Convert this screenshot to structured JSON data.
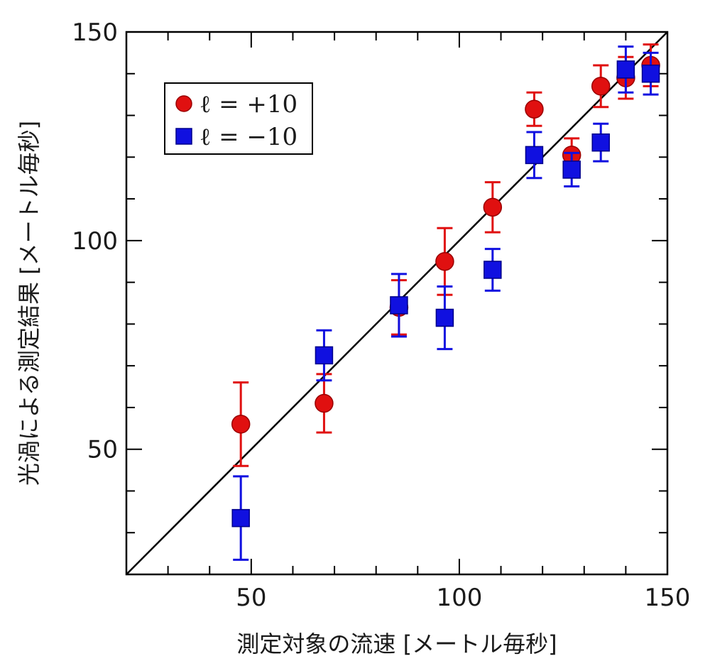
{
  "chart_data": {
    "type": "scatter",
    "xlabel": "測定対象の流速 [メートル毎秒]",
    "ylabel": "光渦による測定結果 [メートル毎秒]",
    "xlim": [
      20,
      150
    ],
    "ylim": [
      20,
      150
    ],
    "x_ticks": [
      {
        "value": 50,
        "label": "50"
      },
      {
        "value": 100,
        "label": "100"
      },
      {
        "value": 150,
        "label": "150"
      }
    ],
    "y_ticks": [
      {
        "value": 50,
        "label": "50"
      },
      {
        "value": 100,
        "label": "100"
      },
      {
        "value": 150,
        "label": "150"
      }
    ],
    "minor_tick_step": 10,
    "grid": false,
    "reference_line": {
      "from": [
        20,
        20
      ],
      "to": [
        150,
        150
      ],
      "color": "#000000"
    },
    "legend": {
      "position": "top-left"
    },
    "series": [
      {
        "name": "ℓ = +10",
        "marker": "circle",
        "color": "#e01010",
        "points": [
          {
            "x": 47.5,
            "y": 56,
            "yerr": 10
          },
          {
            "x": 67.5,
            "y": 61,
            "yerr": 7
          },
          {
            "x": 85.5,
            "y": 84,
            "yerr": 6.5
          },
          {
            "x": 96.5,
            "y": 95,
            "yerr": 8
          },
          {
            "x": 108,
            "y": 108,
            "yerr": 6
          },
          {
            "x": 118,
            "y": 131.5,
            "yerr": 4
          },
          {
            "x": 127,
            "y": 120.5,
            "yerr": 4
          },
          {
            "x": 134,
            "y": 137,
            "yerr": 5
          },
          {
            "x": 140,
            "y": 139,
            "yerr": 5
          },
          {
            "x": 146,
            "y": 142,
            "yerr": 5
          }
        ]
      },
      {
        "name": "ℓ = −10",
        "marker": "square",
        "color": "#1010e0",
        "points": [
          {
            "x": 47.5,
            "y": 33.5,
            "yerr": 10
          },
          {
            "x": 67.5,
            "y": 72.5,
            "yerr": 6
          },
          {
            "x": 85.5,
            "y": 84.5,
            "yerr": 7.5
          },
          {
            "x": 96.5,
            "y": 81.5,
            "yerr": 7.5
          },
          {
            "x": 108,
            "y": 93,
            "yerr": 5
          },
          {
            "x": 118,
            "y": 120.5,
            "yerr": 5.5
          },
          {
            "x": 127,
            "y": 117,
            "yerr": 4
          },
          {
            "x": 134,
            "y": 123.5,
            "yerr": 4.5
          },
          {
            "x": 140,
            "y": 141,
            "yerr": 5.5
          },
          {
            "x": 146,
            "y": 140,
            "yerr": 5
          }
        ]
      }
    ]
  }
}
